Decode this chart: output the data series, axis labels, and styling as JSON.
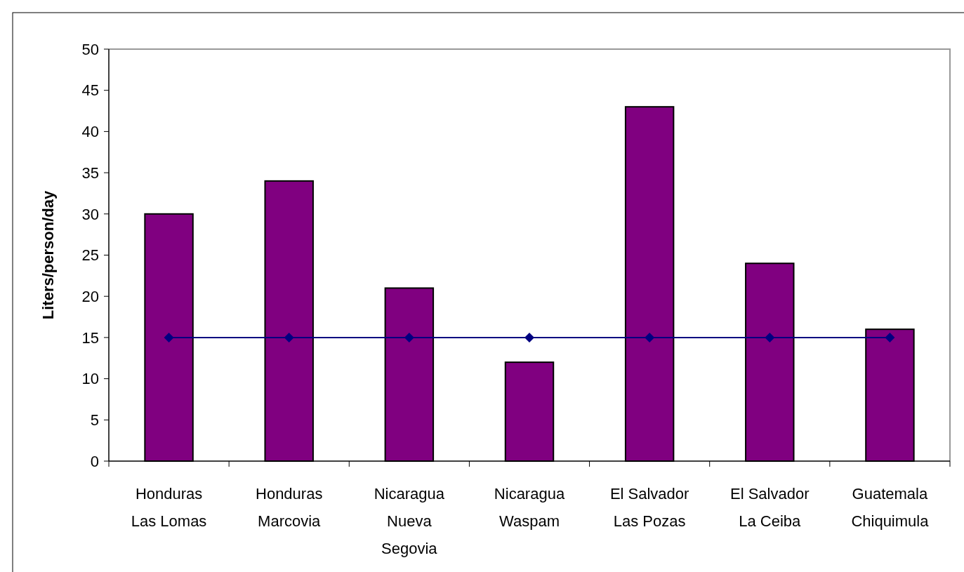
{
  "chart_data": {
    "type": "bar",
    "ylabel": "Liters/person/day",
    "categories": [
      "Honduras\nLas Lomas",
      "Honduras\nMarcovia",
      "Nicaragua\nNueva\nSegovia",
      "Nicaragua\nWaspam",
      "El Salvador\nLas Pozas",
      "El Salvador\nLa Ceiba",
      "Guatemala\nChiquimula"
    ],
    "series": [
      {
        "color": "#800080",
        "values": [
          30,
          34,
          21,
          12,
          43,
          24,
          16
        ]
      },
      {
        "type": "line",
        "color": "#000080",
        "marker": "diamond",
        "values": [
          15,
          15,
          15,
          15,
          15,
          15,
          15
        ]
      }
    ],
    "ylim": [
      0,
      50
    ],
    "yticks": [
      0,
      5,
      10,
      15,
      20,
      25,
      30,
      35,
      40,
      45,
      50
    ],
    "grid": false
  }
}
